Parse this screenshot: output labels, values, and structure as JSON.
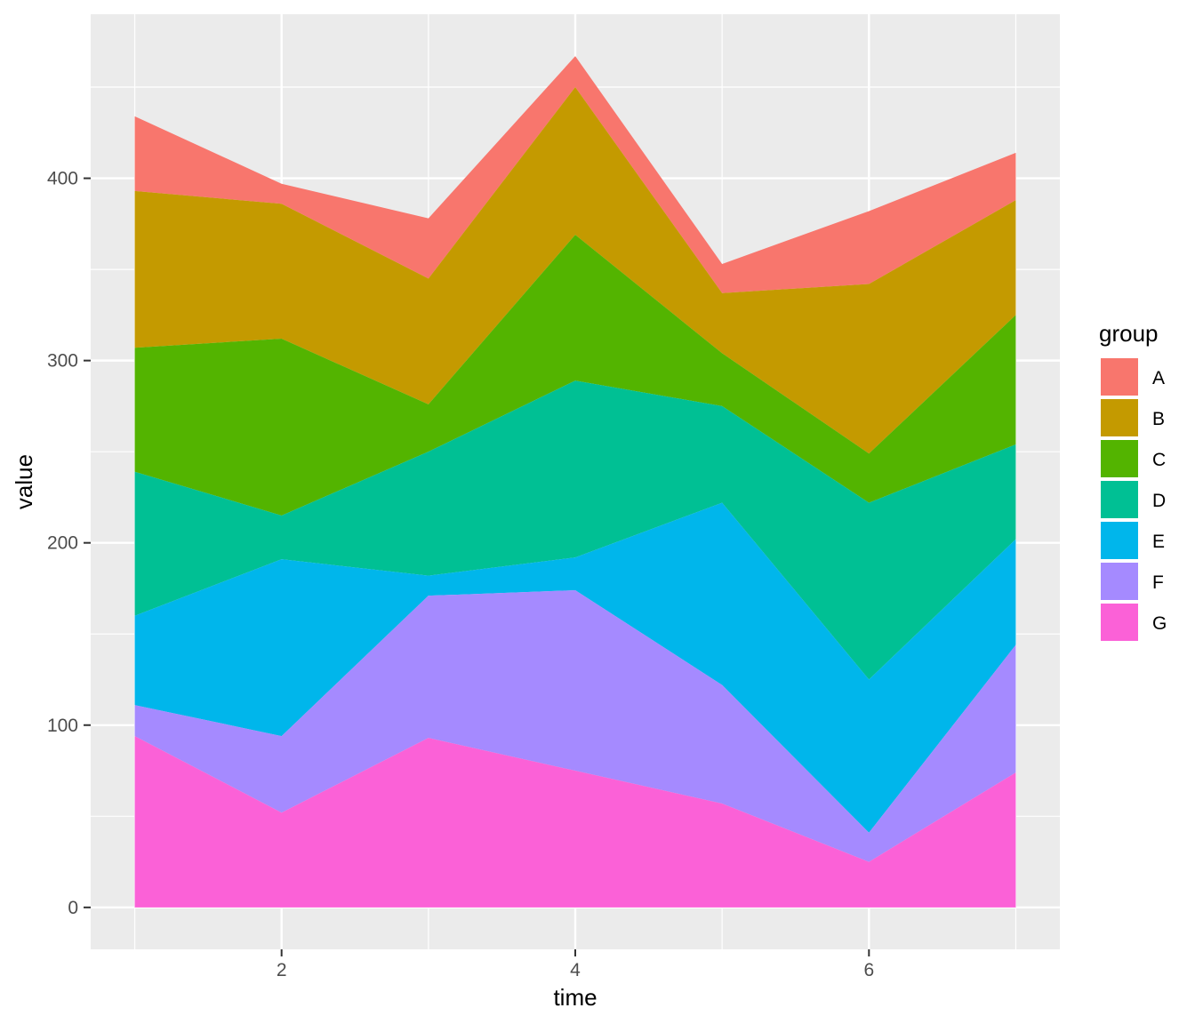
{
  "chart_data": {
    "type": "area",
    "stacked": true,
    "xlabel": "time",
    "ylabel": "value",
    "x": [
      1,
      2,
      3,
      4,
      5,
      6,
      7
    ],
    "xlim": [
      0.7,
      7.3
    ],
    "ylim": [
      -23,
      490
    ],
    "xticks": [
      2,
      4,
      6
    ],
    "yticks": [
      0,
      100,
      200,
      300,
      400
    ],
    "grid": true,
    "legend": {
      "title": "group",
      "position": "right"
    },
    "series": [
      {
        "name": "A",
        "color": "#F8766D",
        "values": [
          41,
          11,
          33,
          17,
          16,
          40,
          26
        ]
      },
      {
        "name": "B",
        "color": "#C49A00",
        "values": [
          86,
          74,
          69,
          81,
          33,
          93,
          63
        ]
      },
      {
        "name": "C",
        "color": "#53B400",
        "values": [
          68,
          97,
          26,
          80,
          29,
          27,
          71
        ]
      },
      {
        "name": "D",
        "color": "#00C094",
        "values": [
          79,
          24,
          68,
          97,
          53,
          97,
          52
        ]
      },
      {
        "name": "E",
        "color": "#00B6EB",
        "values": [
          49,
          97,
          11,
          18,
          100,
          84,
          58
        ]
      },
      {
        "name": "F",
        "color": "#A58AFF",
        "values": [
          17,
          42,
          78,
          99,
          65,
          16,
          70
        ]
      },
      {
        "name": "G",
        "color": "#FB61D7",
        "values": [
          94,
          52,
          93,
          75,
          57,
          25,
          74
        ]
      }
    ]
  }
}
